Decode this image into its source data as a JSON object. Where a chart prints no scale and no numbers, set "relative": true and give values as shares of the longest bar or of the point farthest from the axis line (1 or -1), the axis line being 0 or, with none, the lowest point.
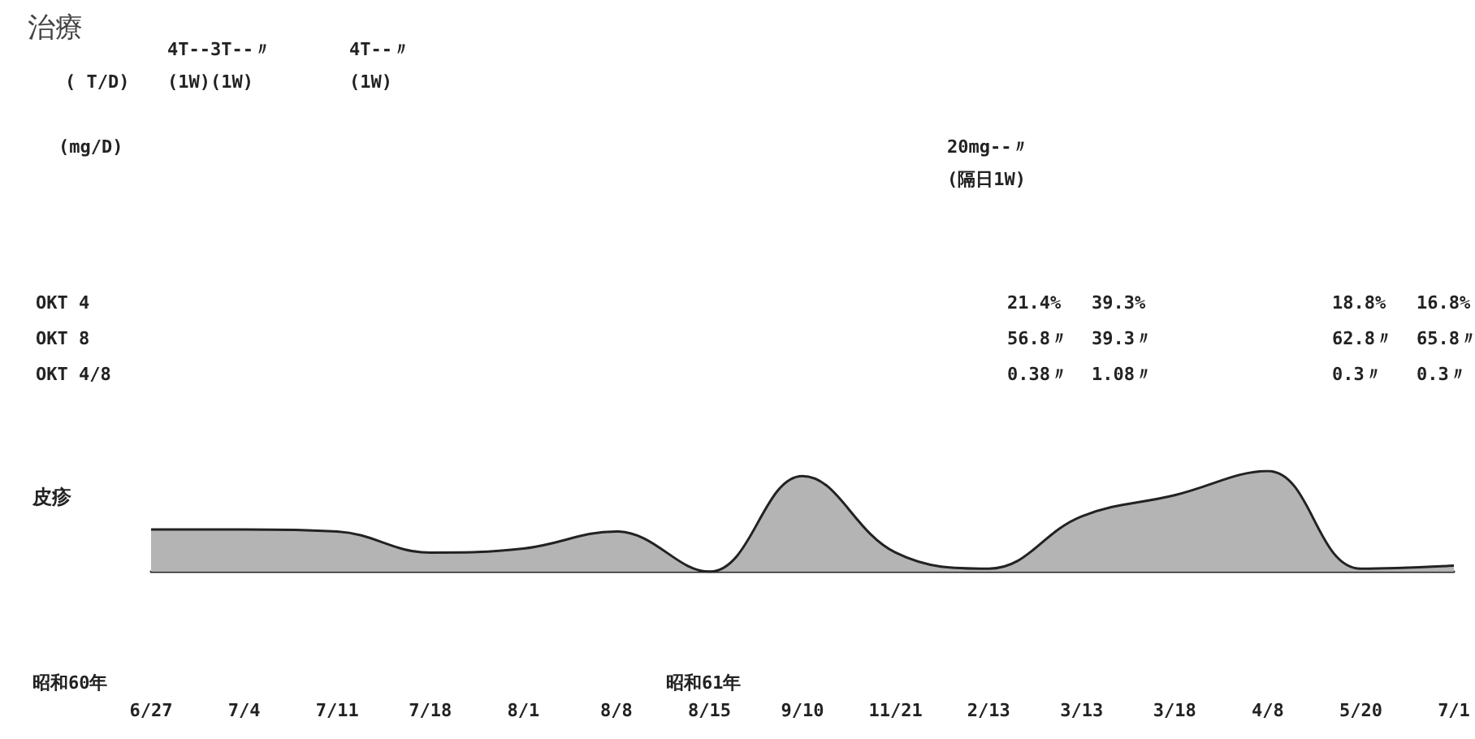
{
  "chart_data": {
    "type": "area",
    "title": "治療",
    "ylabel": "皮疹",
    "relative": true,
    "color": "#b4b4b4",
    "categories": [
      "6/27",
      "7/4",
      "7/11",
      "7/18",
      "8/1",
      "8/8",
      "8/15",
      "9/10",
      "11/21",
      "2/13",
      "3/13",
      "3/18",
      "4/8",
      "5/20",
      "7/1"
    ],
    "values": [
      0.42,
      0.42,
      0.4,
      0.19,
      0.23,
      0.4,
      0,
      0.95,
      0.19,
      0.03,
      0.55,
      0.76,
      1,
      0.03,
      0.06
    ],
    "annotations": [
      "( T/D)",
      "4T--3T--〃",
      "(1W)(1W)",
      "4T--〃",
      "(1W)",
      "(mg/D)",
      "20mg--〃",
      "(隔日1W)",
      "OKT 4",
      "21.4%",
      "39.3%",
      "18.8%",
      "16.8%",
      "OKT 8",
      "56.8〃",
      "39.3〃",
      "62.8〃",
      "65.8〃",
      "OKT 4/8",
      "0.38〃",
      "1.08〃",
      "0.3〃",
      "0.3〃",
      "昭和60年",
      "昭和61年"
    ]
  }
}
